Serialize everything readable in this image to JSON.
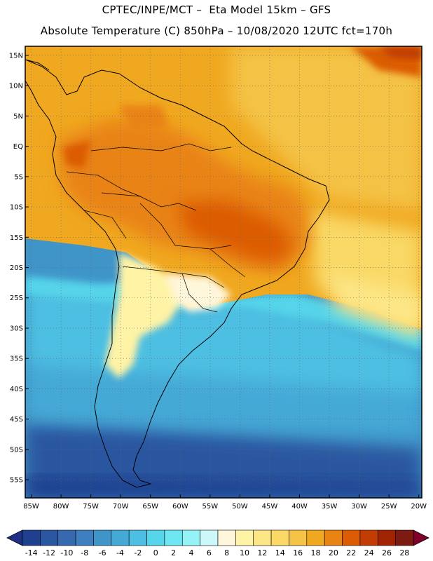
{
  "title": {
    "line1": "CPTEC/INPE/MCT –  Eta Model 15km – GFS",
    "line2": "Absolute Temperature (C) 850hPa – 10/08/2020 12UTC fct=170h"
  },
  "map": {
    "lat_labels": [
      "15N",
      "10N",
      "5N",
      "EQ",
      "5S",
      "10S",
      "15S",
      "20S",
      "25S",
      "30S",
      "35S",
      "40S",
      "45S",
      "50S",
      "55S"
    ],
    "lat_values": [
      15,
      10,
      5,
      0,
      -5,
      -10,
      -15,
      -20,
      -25,
      -30,
      -35,
      -40,
      -45,
      -50,
      -55
    ],
    "lon_labels": [
      "85W",
      "80W",
      "75W",
      "70W",
      "65W",
      "60W",
      "55W",
      "50W",
      "45W",
      "40W",
      "35W",
      "30W",
      "25W",
      "20W"
    ],
    "lon_values": [
      -85,
      -80,
      -75,
      -70,
      -65,
      -60,
      -55,
      -50,
      -45,
      -40,
      -35,
      -30,
      -25,
      -20
    ],
    "lat_range": [
      -58,
      16.5
    ],
    "lon_range": [
      -86,
      -19.5
    ],
    "gridlines": "dotted"
  },
  "colorbar": {
    "labels": [
      "-14",
      "-12",
      "-10",
      "-8",
      "-6",
      "-4",
      "-2",
      "0",
      "2",
      "4",
      "6",
      "8",
      "10",
      "12",
      "14",
      "16",
      "18",
      "20",
      "22",
      "24",
      "26",
      "28"
    ],
    "colors": [
      "#1f3f8f",
      "#2b56a0",
      "#3669b0",
      "#3f7fbf",
      "#3f94c8",
      "#45a9d6",
      "#4dbfe2",
      "#55d4ea",
      "#6ee6f2",
      "#94f3f6",
      "#ccf7fb",
      "#fff7dc",
      "#fff3a6",
      "#fde686",
      "#f9d865",
      "#f4c244",
      "#f0a820",
      "#e98314",
      "#dc5c06",
      "#c23c04",
      "#a02302",
      "#7d1a12"
    ],
    "end_low": "#1e2f86",
    "end_high": "#80002a",
    "unit": "C"
  }
}
